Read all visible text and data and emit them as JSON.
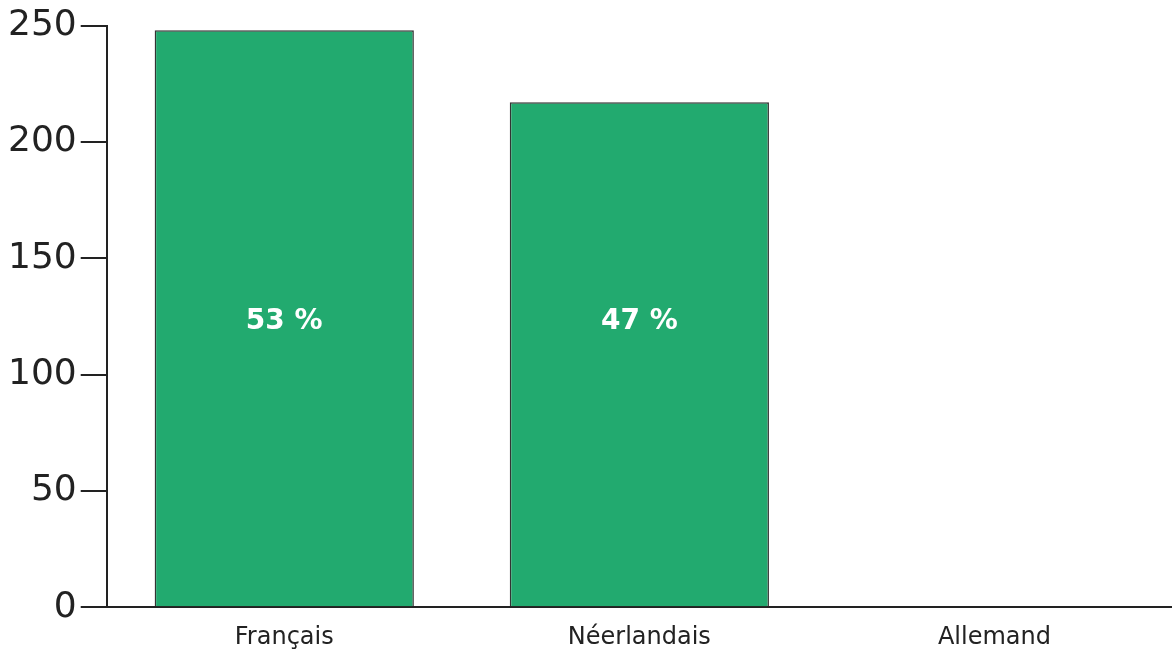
{
  "chart_data": {
    "type": "bar",
    "categories": [
      "Français",
      "Néerlandais",
      "Allemand"
    ],
    "values": [
      248,
      217,
      0
    ],
    "annotations": [
      "53 %",
      "47 %"
    ],
    "color": "#22aa6f",
    "ylim": [
      0,
      250
    ],
    "yticks": [
      0,
      50,
      100,
      150,
      200,
      250
    ],
    "grid": false,
    "legend": false
  }
}
